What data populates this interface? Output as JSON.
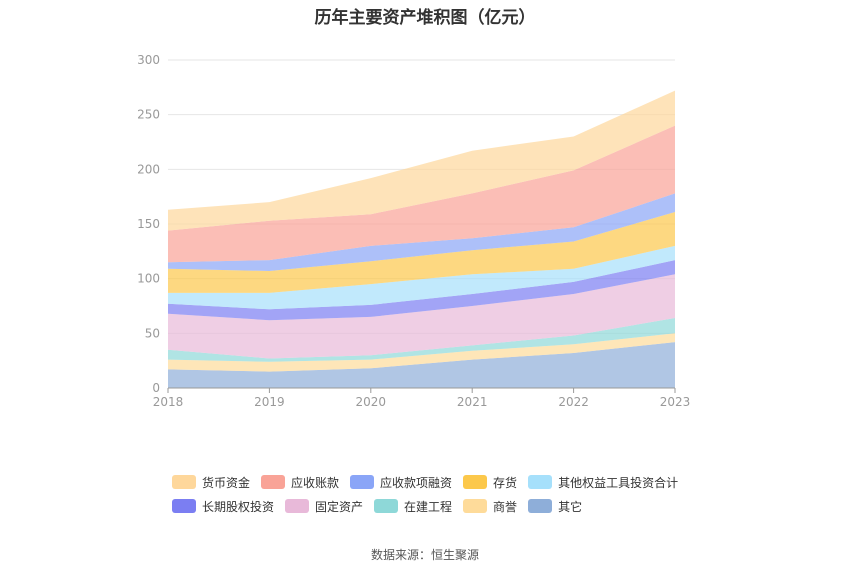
{
  "chart_data": {
    "type": "area",
    "stacked": true,
    "title": "历年主要资产堆积图（亿元）",
    "x": [
      "2018",
      "2019",
      "2020",
      "2021",
      "2022",
      "2023"
    ],
    "ylim": [
      0,
      300
    ],
    "yticks": [
      0,
      50,
      100,
      150,
      200,
      250,
      300
    ],
    "grid": true,
    "legend_position": "bottom",
    "series": [
      {
        "name": "其它",
        "color": "#8eaed9",
        "values": [
          17,
          15,
          18,
          26,
          32,
          42
        ]
      },
      {
        "name": "商誉",
        "color": "#fedb9a",
        "values": [
          9,
          9,
          8,
          8,
          8,
          8
        ]
      },
      {
        "name": "在建工程",
        "color": "#8ed8d8",
        "values": [
          9,
          3,
          4,
          5,
          8,
          14
        ]
      },
      {
        "name": "固定资产",
        "color": "#e8b9d9",
        "values": [
          33,
          35,
          35,
          36,
          38,
          40
        ]
      },
      {
        "name": "长期股权投资",
        "color": "#7b7ef2",
        "values": [
          9,
          10,
          11,
          11,
          11,
          13
        ]
      },
      {
        "name": "其他权益工具投资合计",
        "color": "#a6e0fb",
        "values": [
          10,
          15,
          19,
          18,
          12,
          13
        ]
      },
      {
        "name": "存货",
        "color": "#fcc84b",
        "values": [
          22,
          20,
          21,
          22,
          25,
          31
        ]
      },
      {
        "name": "应收款项融资",
        "color": "#8aa5f7",
        "values": [
          6,
          10,
          14,
          11,
          13,
          17
        ]
      },
      {
        "name": "应收账款",
        "color": "#f9a397",
        "values": [
          29,
          36,
          29,
          41,
          52,
          62
        ]
      },
      {
        "name": "货币资金",
        "color": "#fed79b",
        "values": [
          19,
          17,
          33,
          39,
          31,
          32
        ]
      }
    ]
  },
  "legend": {
    "row1": [
      {
        "name": "货币资金",
        "color": "#fed79b"
      },
      {
        "name": "应收账款",
        "color": "#f9a397"
      },
      {
        "name": "应收款项融资",
        "color": "#8aa5f7"
      },
      {
        "name": "存货",
        "color": "#fcc84b"
      },
      {
        "name": "其他权益工具投资合计",
        "color": "#a6e0fb"
      }
    ],
    "row2": [
      {
        "name": "长期股权投资",
        "color": "#7b7ef2"
      },
      {
        "name": "固定资产",
        "color": "#e8b9d9"
      },
      {
        "name": "在建工程",
        "color": "#8ed8d8"
      },
      {
        "name": "商誉",
        "color": "#fedb9a"
      },
      {
        "name": "其它",
        "color": "#8eaed9"
      }
    ]
  },
  "source": "数据来源：恒生聚源"
}
